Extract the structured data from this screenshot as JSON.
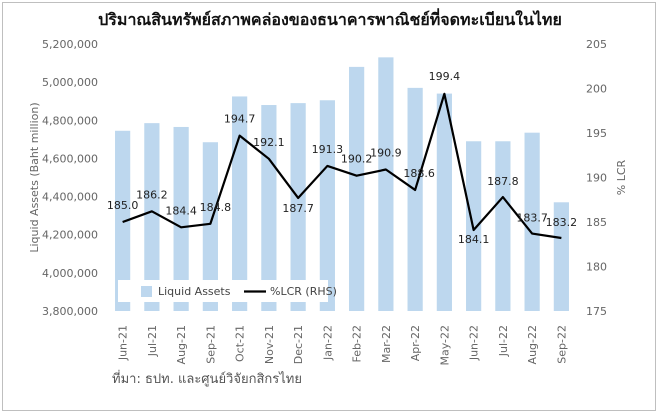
{
  "chart_data": {
    "type": "bar+line",
    "title": "ปริมาณสินทรัพย์สภาพคล่องของธนาคารพาณิชย์ที่จดทะเบียนในไทย",
    "source": "ที่มา: ธปท. และศูนย์วิจัยกสิกรไทย",
    "categories": [
      "Jun-21",
      "Jul-21",
      "Aug-21",
      "Sep-21",
      "Oct-21",
      "Nov-21",
      "Dec-21",
      "Jan-22",
      "Feb-22",
      "Mar-22",
      "Apr-22",
      "May-22",
      "Jun-22",
      "Jul-22",
      "Aug-22",
      "Sep-22"
    ],
    "series": [
      {
        "name": "Liquid Assets",
        "type": "bar",
        "axis": "left",
        "color": "#bdd7ee",
        "values": [
          4745000,
          4785000,
          4765000,
          4685000,
          4925000,
          4880000,
          4890000,
          4905000,
          5080000,
          5130000,
          4970000,
          4940000,
          4690000,
          4690000,
          4735000,
          4370000
        ]
      },
      {
        "name": "%LCR (RHS)",
        "type": "line",
        "axis": "right",
        "color": "#000000",
        "values": [
          185.0,
          186.2,
          184.4,
          184.8,
          194.7,
          192.1,
          187.7,
          191.3,
          190.2,
          190.9,
          188.6,
          199.4,
          184.1,
          187.8,
          183.7,
          183.2
        ],
        "labels": [
          "185.0",
          "186.2",
          "184.4",
          "184.8",
          "194.7",
          "192.1",
          "187.7",
          "191.3",
          "190.2",
          "190.9",
          "188.6",
          "199.4",
          "184.1",
          "187.8",
          "183.7",
          "183.2"
        ]
      }
    ],
    "left_axis": {
      "label": "Liquid Assets (Baht million)",
      "ylim": [
        3800000,
        5200000
      ],
      "ticks": [
        "3,800,000",
        "4,000,000",
        "4,200,000",
        "4,400,000",
        "4,600,000",
        "4,800,000",
        "5,000,000",
        "5,200,000"
      ]
    },
    "right_axis": {
      "label": "% LCR",
      "ylim": [
        175,
        205
      ],
      "ticks": [
        "175",
        "180",
        "185",
        "190",
        "195",
        "200",
        "205"
      ]
    },
    "grid": false,
    "legend": "lower-left inside"
  }
}
